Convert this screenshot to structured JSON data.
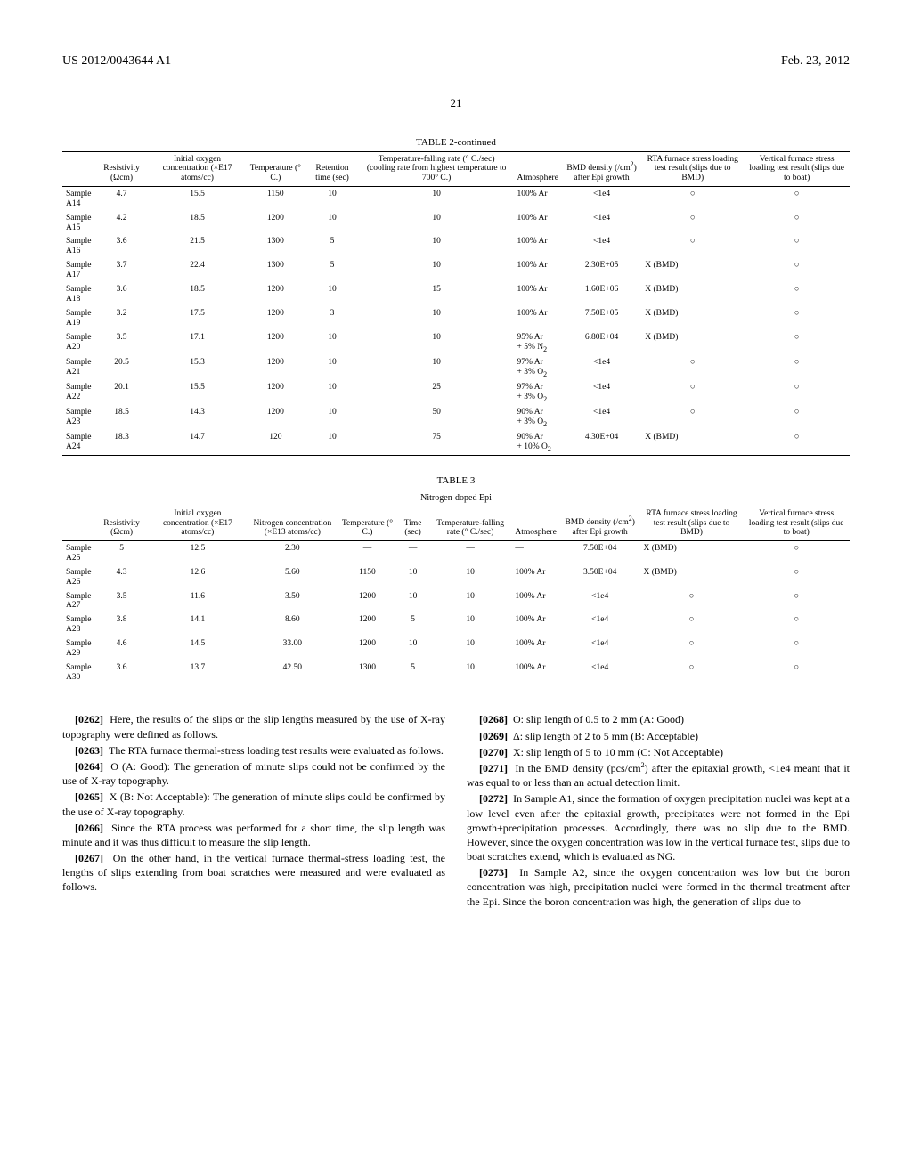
{
  "header": {
    "left": "US 2012/0043644 A1",
    "right": "Feb. 23, 2012"
  },
  "page_number": "21",
  "table2": {
    "title": "TABLE 2-continued",
    "headers": [
      "",
      "Resistivity (Ωcm)",
      "Initial oxygen concentration (×E17 atoms/cc)",
      "Temperature (° C.)",
      "Retention time (sec)",
      "Temperature-falling rate (° C./sec) (cooling rate from highest temperature to 700° C.)",
      "Atmosphere",
      "BMD density (/cm²) after Epi growth",
      "RTA furnace stress loading test result (slips due to BMD)",
      "Vertical furnace stress loading test result (slips due to boat)"
    ],
    "rows": [
      [
        "Sample A14",
        "4.7",
        "15.5",
        "1150",
        "10",
        "10",
        "100% Ar",
        "<1e4",
        "○",
        "○"
      ],
      [
        "Sample A15",
        "4.2",
        "18.5",
        "1200",
        "10",
        "10",
        "100% Ar",
        "<1e4",
        "○",
        "○"
      ],
      [
        "Sample A16",
        "3.6",
        "21.5",
        "1300",
        "5",
        "10",
        "100% Ar",
        "<1e4",
        "○",
        "○"
      ],
      [
        "Sample A17",
        "3.7",
        "22.4",
        "1300",
        "5",
        "10",
        "100% Ar",
        "2.30E+05",
        "X (BMD)",
        "○"
      ],
      [
        "Sample A18",
        "3.6",
        "18.5",
        "1200",
        "10",
        "15",
        "100% Ar",
        "1.60E+06",
        "X (BMD)",
        "○"
      ],
      [
        "Sample A19",
        "3.2",
        "17.5",
        "1200",
        "3",
        "10",
        "100% Ar",
        "7.50E+05",
        "X (BMD)",
        "○"
      ],
      [
        "Sample A20",
        "3.5",
        "17.1",
        "1200",
        "10",
        "10",
        "95% Ar + 5% N₂",
        "6.80E+04",
        "X (BMD)",
        "○"
      ],
      [
        "Sample A21",
        "20.5",
        "15.3",
        "1200",
        "10",
        "10",
        "97% Ar + 3% O₂",
        "<1e4",
        "○",
        "○"
      ],
      [
        "Sample A22",
        "20.1",
        "15.5",
        "1200",
        "10",
        "25",
        "97% Ar + 3% O₂",
        "<1e4",
        "○",
        "○"
      ],
      [
        "Sample A23",
        "18.5",
        "14.3",
        "1200",
        "10",
        "50",
        "90% Ar + 3% O₂",
        "<1e4",
        "○",
        "○"
      ],
      [
        "Sample A24",
        "18.3",
        "14.7",
        "120",
        "10",
        "75",
        "90% Ar + 10% O₂",
        "4.30E+04",
        "X (BMD)",
        "○"
      ]
    ]
  },
  "table3": {
    "title": "TABLE 3",
    "subtitle": "Nitrogen-doped Epi",
    "headers": [
      "",
      "Resistivity (Ωcm)",
      "Initial oxygen concentration (×E17 atoms/cc)",
      "Nitrogen concentration (×E13 atoms/cc)",
      "Temperature (° C.)",
      "Time (sec)",
      "Temperature-falling rate (° C./sec)",
      "Atmosphere",
      "BMD density (/cm²) after Epi growth",
      "RTA furnace stress loading test result (slips due to BMD)",
      "Vertical furnace stress loading test result (slips due to boat)"
    ],
    "rows": [
      [
        "Sample A25",
        "5",
        "12.5",
        "2.30",
        "—",
        "—",
        "—",
        "—",
        "7.50E+04",
        "X (BMD)",
        "○"
      ],
      [
        "Sample A26",
        "4.3",
        "12.6",
        "5.60",
        "1150",
        "10",
        "10",
        "100% Ar",
        "3.50E+04",
        "X (BMD)",
        "○"
      ],
      [
        "Sample A27",
        "3.5",
        "11.6",
        "3.50",
        "1200",
        "10",
        "10",
        "100% Ar",
        "<1e4",
        "○",
        "○"
      ],
      [
        "Sample A28",
        "3.8",
        "14.1",
        "8.60",
        "1200",
        "5",
        "10",
        "100% Ar",
        "<1e4",
        "○",
        "○"
      ],
      [
        "Sample A29",
        "4.6",
        "14.5",
        "33.00",
        "1200",
        "10",
        "10",
        "100% Ar",
        "<1e4",
        "○",
        "○"
      ],
      [
        "Sample A30",
        "3.6",
        "13.7",
        "42.50",
        "1300",
        "5",
        "10",
        "100% Ar",
        "<1e4",
        "○",
        "○"
      ]
    ]
  },
  "paragraphs_left": [
    {
      "num": "[0262]",
      "text": "Here, the results of the slips or the slip lengths measured by the use of X-ray topography were defined as follows."
    },
    {
      "num": "[0263]",
      "text": "The RTA furnace thermal-stress loading test results were evaluated as follows."
    },
    {
      "num": "[0264]",
      "text": "O (A: Good): The generation of minute slips could not be confirmed by the use of X-ray topography."
    },
    {
      "num": "[0265]",
      "text": "X (B: Not Acceptable): The generation of minute slips could be confirmed by the use of X-ray topography."
    },
    {
      "num": "[0266]",
      "text": "Since the RTA process was performed for a short time, the slip length was minute and it was thus difficult to measure the slip length."
    },
    {
      "num": "[0267]",
      "text": "On the other hand, in the vertical furnace thermal-stress loading test, the lengths of slips extending from boat scratches were measured and were evaluated as follows."
    }
  ],
  "paragraphs_right": [
    {
      "num": "[0268]",
      "text": "O: slip length of 0.5 to 2 mm (A: Good)"
    },
    {
      "num": "[0269]",
      "text": "Δ: slip length of 2 to 5 mm (B: Acceptable)"
    },
    {
      "num": "[0270]",
      "text": "X: slip length of 5 to 10 mm (C: Not Acceptable)"
    },
    {
      "num": "[0271]",
      "text": "In the BMD density (pcs/cm²) after the epitaxial growth, <1e4 meant that it was equal to or less than an actual detection limit."
    },
    {
      "num": "[0272]",
      "text": "In Sample A1, since the formation of oxygen precipitation nuclei was kept at a low level even after the epitaxial growth, precipitates were not formed in the Epi growth+precipitation processes. Accordingly, there was no slip due to the BMD. However, since the oxygen concentration was low in the vertical furnace test, slips due to boat scratches extend, which is evaluated as NG."
    },
    {
      "num": "[0273]",
      "text": "In Sample A2, since the oxygen concentration was low but the boron concentration was high, precipitation nuclei were formed in the thermal treatment after the Epi. Since the boron concentration was high, the generation of slips due to"
    }
  ]
}
